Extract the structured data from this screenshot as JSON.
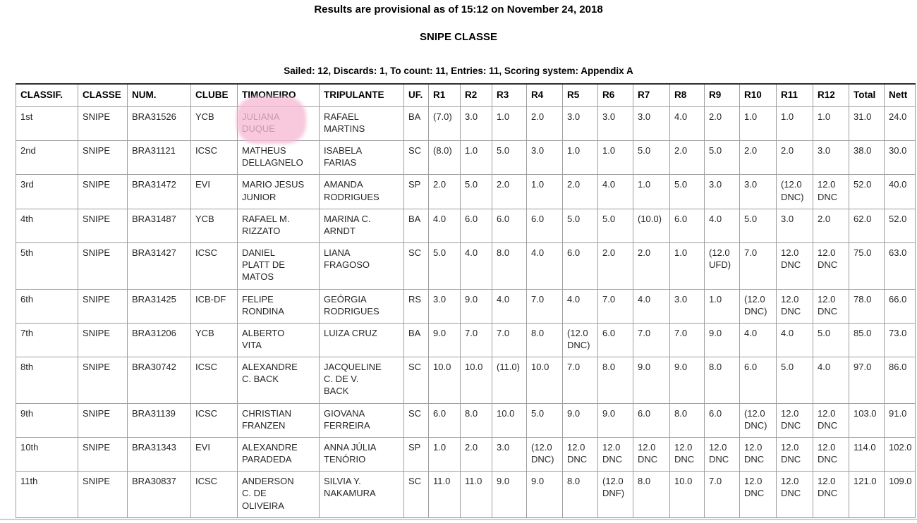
{
  "page": {
    "provisional_notice": "Results are provisional as of 15:12 on November 24, 2018",
    "class_title": "SNIPE CLASSE",
    "series_summary": "Sailed: 12, Discards: 1, To count: 11, Entries: 11, Scoring system: Appendix A"
  },
  "highlight": {
    "target_text": "JULIANA DUQUE",
    "color": "rgba(246,184,212,0.78)"
  },
  "table": {
    "columns": [
      "CLASSIF.",
      "CLASSE",
      "NUM.",
      "CLUBE",
      "TIMONEIRO",
      "TRIPULANTE",
      "UF.",
      "R1",
      "R2",
      "R3",
      "R4",
      "R5",
      "R6",
      "R7",
      "R8",
      "R9",
      "R10",
      "R11",
      "R12",
      "Total",
      "Nett"
    ],
    "rows": [
      [
        "1st",
        "SNIPE",
        "BRA31526",
        "YCB",
        "JULIANA\nDUQUE",
        "RAFAEL\nMARTINS",
        "BA",
        "(7.0)",
        "3.0",
        "1.0",
        "2.0",
        "3.0",
        "3.0",
        "3.0",
        "4.0",
        "2.0",
        "1.0",
        "1.0",
        "1.0",
        "31.0",
        "24.0"
      ],
      [
        "2nd",
        "SNIPE",
        "BRA31121",
        "ICSC",
        "MATHEUS\nDELLAGNELO",
        "ISABELA\nFARIAS",
        "SC",
        "(8.0)",
        "1.0",
        "5.0",
        "3.0",
        "1.0",
        "1.0",
        "5.0",
        "2.0",
        "5.0",
        "2.0",
        "2.0",
        "3.0",
        "38.0",
        "30.0"
      ],
      [
        "3rd",
        "SNIPE",
        "BRA31472",
        "EVI",
        "MARIO JESUS\nJUNIOR",
        "AMANDA\nRODRIGUES",
        "SP",
        "2.0",
        "5.0",
        "2.0",
        "1.0",
        "2.0",
        "4.0",
        "1.0",
        "5.0",
        "3.0",
        "3.0",
        "(12.0\nDNC)",
        "12.0\nDNC",
        "52.0",
        "40.0"
      ],
      [
        "4th",
        "SNIPE",
        "BRA31487",
        "YCB",
        "RAFAEL M.\nRIZZATO",
        "MARINA C.\nARNDT",
        "BA",
        "4.0",
        "6.0",
        "6.0",
        "6.0",
        "5.0",
        "5.0",
        "(10.0)",
        "6.0",
        "4.0",
        "5.0",
        "3.0",
        "2.0",
        "62.0",
        "52.0"
      ],
      [
        "5th",
        "SNIPE",
        "BRA31427",
        "ICSC",
        "DANIEL\nPLATT DE\nMATOS",
        "LIANA\nFRAGOSO",
        "SC",
        "5.0",
        "4.0",
        "8.0",
        "4.0",
        "6.0",
        "2.0",
        "2.0",
        "1.0",
        "(12.0\nUFD)",
        "7.0",
        "12.0\nDNC",
        "12.0\nDNC",
        "75.0",
        "63.0"
      ],
      [
        "6th",
        "SNIPE",
        "BRA31425",
        "ICB-DF",
        "FELIPE\nRONDINA",
        "GEÓRGIA\nRODRIGUES",
        "RS",
        "3.0",
        "9.0",
        "4.0",
        "7.0",
        "4.0",
        "7.0",
        "4.0",
        "3.0",
        "1.0",
        "(12.0\nDNC)",
        "12.0\nDNC",
        "12.0\nDNC",
        "78.0",
        "66.0"
      ],
      [
        "7th",
        "SNIPE",
        "BRA31206",
        "YCB",
        "ALBERTO\nVITA",
        "LUIZA CRUZ",
        "BA",
        "9.0",
        "7.0",
        "7.0",
        "8.0",
        "(12.0\nDNC)",
        "6.0",
        "7.0",
        "7.0",
        "9.0",
        "4.0",
        "4.0",
        "5.0",
        "85.0",
        "73.0"
      ],
      [
        "8th",
        "SNIPE",
        "BRA30742",
        "ICSC",
        "ALEXANDRE\nC. BACK",
        "JACQUELINE\nC. DE V.\nBACK",
        "SC",
        "10.0",
        "10.0",
        "(11.0)",
        "10.0",
        "7.0",
        "8.0",
        "9.0",
        "9.0",
        "8.0",
        "6.0",
        "5.0",
        "4.0",
        "97.0",
        "86.0"
      ],
      [
        "9th",
        "SNIPE",
        "BRA31139",
        "ICSC",
        "CHRISTIAN\nFRANZEN",
        "GIOVANA\nFERREIRA",
        "SC",
        "6.0",
        "8.0",
        "10.0",
        "5.0",
        "9.0",
        "9.0",
        "6.0",
        "8.0",
        "6.0",
        "(12.0\nDNC)",
        "12.0\nDNC",
        "12.0\nDNC",
        "103.0",
        "91.0"
      ],
      [
        "10th",
        "SNIPE",
        "BRA31343",
        "EVI",
        "ALEXANDRE\nPARADEDA",
        "ANNA JÚLIA\nTENÓRIO",
        "SP",
        "1.0",
        "2.0",
        "3.0",
        "(12.0\nDNC)",
        "12.0\nDNC",
        "12.0\nDNC",
        "12.0\nDNC",
        "12.0\nDNC",
        "12.0\nDNC",
        "12.0\nDNC",
        "12.0\nDNC",
        "12.0\nDNC",
        "114.0",
        "102.0"
      ],
      [
        "11th",
        "SNIPE",
        "BRA30837",
        "ICSC",
        "ANDERSON\nC. DE\nOLIVEIRA",
        "SILVIA Y.\nNAKAMURA",
        "SC",
        "11.0",
        "11.0",
        "9.0",
        "9.0",
        "8.0",
        "(12.0\nDNF)",
        "8.0",
        "10.0",
        "7.0",
        "12.0\nDNC",
        "12.0\nDNC",
        "12.0\nDNC",
        "121.0",
        "109.0"
      ]
    ]
  }
}
